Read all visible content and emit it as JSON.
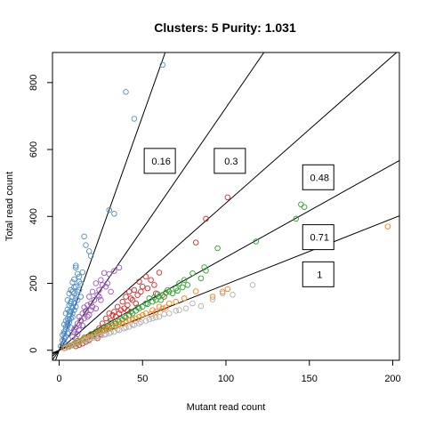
{
  "chart_data": {
    "type": "scatter",
    "title": "Clusters: 5  Purity: 1.031",
    "xlabel": "Mutant read count",
    "ylabel": "Total read count",
    "xlim": [
      -4,
      204
    ],
    "ylim": [
      -30,
      890
    ],
    "x_ticks": [
      0,
      50,
      100,
      150,
      200
    ],
    "y_ticks": [
      0,
      200,
      400,
      600,
      800
    ],
    "grid": false,
    "legend": "none",
    "reference_lines": [
      {
        "label": "0.16",
        "slope": 14.0,
        "label_at": [
          51,
          566
        ]
      },
      {
        "label": "0.3",
        "slope": 7.25,
        "label_at": [
          93,
          566
        ]
      },
      {
        "label": "0.48",
        "slope": 4.4,
        "label_at": [
          146,
          517
        ]
      },
      {
        "label": "0.71",
        "slope": 2.78,
        "label_at": [
          146,
          338
        ]
      },
      {
        "label": "1",
        "slope": 1.97,
        "label_at": [
          146,
          227
        ]
      }
    ],
    "series": [
      {
        "color": "#4f8dc9",
        "points": [
          [
            62,
            853
          ],
          [
            40,
            772
          ],
          [
            45,
            692
          ],
          [
            30,
            419
          ],
          [
            33,
            408
          ],
          [
            15,
            340
          ],
          [
            16,
            314
          ],
          [
            18,
            296
          ],
          [
            19,
            282
          ],
          [
            10,
            253
          ],
          [
            10,
            247
          ],
          [
            14,
            233
          ],
          [
            11,
            228
          ],
          [
            9,
            212
          ],
          [
            12,
            205
          ],
          [
            8,
            203
          ],
          [
            13,
            199
          ],
          [
            9,
            188
          ],
          [
            7,
            180
          ],
          [
            11,
            175
          ],
          [
            6,
            170
          ],
          [
            8,
            160
          ],
          [
            10,
            155
          ],
          [
            5,
            150
          ],
          [
            7,
            145
          ],
          [
            9,
            140
          ],
          [
            6,
            134
          ],
          [
            8,
            128
          ],
          [
            5,
            122
          ],
          [
            7,
            117
          ],
          [
            4,
            110
          ],
          [
            6,
            104
          ],
          [
            8,
            99
          ],
          [
            5,
            94
          ],
          [
            4,
            88
          ],
          [
            6,
            83
          ],
          [
            3,
            77
          ],
          [
            5,
            72
          ],
          [
            7,
            67
          ],
          [
            4,
            62
          ],
          [
            3,
            56
          ],
          [
            5,
            51
          ],
          [
            2,
            46
          ],
          [
            4,
            41
          ],
          [
            3,
            36
          ],
          [
            2,
            30
          ],
          [
            3,
            24
          ],
          [
            2,
            18
          ],
          [
            1,
            12
          ],
          [
            6,
            115
          ],
          [
            9,
            170
          ],
          [
            12,
            180
          ],
          [
            7,
            140
          ],
          [
            10,
            130
          ],
          [
            8,
            110
          ],
          [
            11,
            150
          ],
          [
            6,
            92
          ],
          [
            5,
            80
          ],
          [
            9,
            120
          ],
          [
            13,
            160
          ],
          [
            7,
            95
          ],
          [
            4,
            70
          ],
          [
            3,
            50
          ],
          [
            10,
            190
          ],
          [
            12,
            220
          ],
          [
            8,
            175
          ]
        ]
      },
      {
        "color": "#9b59b6",
        "points": [
          [
            33,
            237
          ],
          [
            36,
            247
          ],
          [
            27,
            231
          ],
          [
            30,
            228
          ],
          [
            25,
            210
          ],
          [
            22,
            200
          ],
          [
            26,
            195
          ],
          [
            28,
            190
          ],
          [
            24,
            180
          ],
          [
            20,
            175
          ],
          [
            23,
            165
          ],
          [
            18,
            160
          ],
          [
            21,
            150
          ],
          [
            19,
            140
          ],
          [
            17,
            135
          ],
          [
            15,
            128
          ],
          [
            22,
            125
          ],
          [
            16,
            118
          ],
          [
            14,
            110
          ],
          [
            18,
            105
          ],
          [
            12,
            100
          ],
          [
            15,
            95
          ],
          [
            13,
            88
          ],
          [
            11,
            80
          ],
          [
            14,
            74
          ],
          [
            10,
            68
          ],
          [
            12,
            60
          ],
          [
            9,
            55
          ],
          [
            11,
            48
          ],
          [
            8,
            40
          ],
          [
            10,
            35
          ],
          [
            20,
            130
          ],
          [
            25,
            150
          ],
          [
            16,
            115
          ],
          [
            13,
            90
          ],
          [
            19,
            120
          ],
          [
            24,
            160
          ],
          [
            29,
            200
          ],
          [
            17,
            100
          ],
          [
            12,
            75
          ],
          [
            9,
            62
          ],
          [
            31,
            175
          ]
        ]
      },
      {
        "color": "#d62728",
        "points": [
          [
            101,
            457
          ],
          [
            88,
            393
          ],
          [
            82,
            322
          ],
          [
            60,
            232
          ],
          [
            52,
            220
          ],
          [
            55,
            210
          ],
          [
            48,
            205
          ],
          [
            50,
            190
          ],
          [
            45,
            180
          ],
          [
            42,
            175
          ],
          [
            47,
            165
          ],
          [
            40,
            160
          ],
          [
            44,
            150
          ],
          [
            38,
            145
          ],
          [
            41,
            135
          ],
          [
            35,
            130
          ],
          [
            37,
            120
          ],
          [
            33,
            115
          ],
          [
            30,
            110
          ],
          [
            34,
            100
          ],
          [
            28,
            95
          ],
          [
            31,
            88
          ],
          [
            26,
            80
          ],
          [
            29,
            72
          ],
          [
            24,
            66
          ],
          [
            27,
            60
          ],
          [
            22,
            55
          ],
          [
            25,
            48
          ],
          [
            20,
            42
          ],
          [
            23,
            36
          ],
          [
            18,
            30
          ],
          [
            16,
            25
          ],
          [
            14,
            20
          ],
          [
            12,
            16
          ],
          [
            10,
            12
          ],
          [
            58,
            170
          ],
          [
            53,
            185
          ],
          [
            46,
            140
          ],
          [
            39,
            125
          ],
          [
            32,
            105
          ],
          [
            43,
            155
          ],
          [
            36,
            110
          ],
          [
            49,
            175
          ],
          [
            57,
            195
          ],
          [
            63,
            160
          ],
          [
            41,
            118
          ]
        ]
      },
      {
        "color": "#2ca02c",
        "points": [
          [
            145,
            436
          ],
          [
            147,
            428
          ],
          [
            142,
            393
          ],
          [
            118,
            325
          ],
          [
            95,
            305
          ],
          [
            87,
            248
          ],
          [
            88,
            238
          ],
          [
            80,
            230
          ],
          [
            75,
            210
          ],
          [
            72,
            200
          ],
          [
            70,
            185
          ],
          [
            65,
            180
          ],
          [
            68,
            170
          ],
          [
            62,
            165
          ],
          [
            60,
            160
          ],
          [
            58,
            150
          ],
          [
            56,
            145
          ],
          [
            53,
            138
          ],
          [
            50,
            130
          ],
          [
            48,
            125
          ],
          [
            46,
            118
          ],
          [
            44,
            110
          ],
          [
            42,
            105
          ],
          [
            40,
            98
          ],
          [
            38,
            92
          ],
          [
            36,
            85
          ],
          [
            34,
            80
          ],
          [
            32,
            75
          ],
          [
            30,
            70
          ],
          [
            28,
            65
          ],
          [
            26,
            60
          ],
          [
            24,
            55
          ],
          [
            22,
            50
          ],
          [
            20,
            45
          ],
          [
            18,
            40
          ],
          [
            16,
            35
          ],
          [
            14,
            30
          ],
          [
            12,
            25
          ],
          [
            10,
            20
          ],
          [
            8,
            16
          ],
          [
            6,
            12
          ],
          [
            64,
            172
          ],
          [
            71,
            178
          ],
          [
            77,
            195
          ],
          [
            54,
            155
          ],
          [
            59,
            168
          ],
          [
            66,
            175
          ],
          [
            52,
            140
          ],
          [
            47,
            128
          ],
          [
            43,
            115
          ],
          [
            39,
            100
          ],
          [
            35,
            90
          ],
          [
            31,
            82
          ],
          [
            27,
            70
          ],
          [
            23,
            58
          ],
          [
            19,
            48
          ],
          [
            15,
            38
          ],
          [
            11,
            28
          ],
          [
            57,
            158
          ],
          [
            61,
            150
          ],
          [
            74,
            188
          ],
          [
            85,
            215
          ]
        ]
      },
      {
        "color": "#ff7f0e",
        "points": [
          [
            197,
            370
          ],
          [
            101,
            183
          ],
          [
            98,
            175
          ],
          [
            82,
            176
          ],
          [
            92,
            160
          ],
          [
            75,
            155
          ],
          [
            70,
            145
          ],
          [
            66,
            140
          ],
          [
            60,
            130
          ],
          [
            56,
            120
          ],
          [
            52,
            110
          ],
          [
            48,
            100
          ],
          [
            44,
            92
          ],
          [
            40,
            85
          ],
          [
            36,
            78
          ],
          [
            33,
            70
          ],
          [
            30,
            65
          ],
          [
            27,
            58
          ],
          [
            24,
            52
          ],
          [
            21,
            45
          ],
          [
            18,
            40
          ],
          [
            15,
            34
          ],
          [
            13,
            28
          ],
          [
            11,
            24
          ],
          [
            9,
            20
          ],
          [
            7,
            15
          ],
          [
            5,
            10
          ],
          [
            3,
            6
          ],
          [
            58,
            115
          ],
          [
            62,
            125
          ],
          [
            46,
            95
          ],
          [
            38,
            80
          ],
          [
            34,
            72
          ],
          [
            29,
            62
          ],
          [
            25,
            54
          ],
          [
            19,
            42
          ],
          [
            16,
            36
          ],
          [
            50,
            105
          ],
          [
            42,
            90
          ],
          [
            55,
            108
          ],
          [
            64,
            128
          ]
        ]
      },
      {
        "color": "#b0b0b0",
        "points": [
          [
            116,
            195
          ],
          [
            98,
            170
          ],
          [
            92,
            152
          ],
          [
            80,
            140
          ],
          [
            76,
            125
          ],
          [
            72,
            120
          ],
          [
            66,
            110
          ],
          [
            60,
            100
          ],
          [
            56,
            95
          ],
          [
            52,
            88
          ],
          [
            48,
            80
          ],
          [
            45,
            75
          ],
          [
            42,
            70
          ],
          [
            39,
            65
          ],
          [
            36,
            60
          ],
          [
            33,
            55
          ],
          [
            30,
            50
          ],
          [
            27,
            46
          ],
          [
            24,
            42
          ],
          [
            21,
            38
          ],
          [
            18,
            33
          ],
          [
            15,
            28
          ],
          [
            12,
            23
          ],
          [
            10,
            18
          ],
          [
            8,
            14
          ],
          [
            6,
            10
          ],
          [
            4,
            7
          ],
          [
            63,
            108
          ],
          [
            58,
            98
          ],
          [
            54,
            92
          ],
          [
            49,
            84
          ],
          [
            44,
            76
          ],
          [
            40,
            68
          ],
          [
            35,
            62
          ],
          [
            31,
            54
          ],
          [
            28,
            48
          ],
          [
            25,
            44
          ],
          [
            22,
            40
          ],
          [
            19,
            35
          ],
          [
            16,
            30
          ],
          [
            70,
            118
          ],
          [
            85,
            132
          ],
          [
            104,
            166
          ]
        ]
      }
    ]
  }
}
